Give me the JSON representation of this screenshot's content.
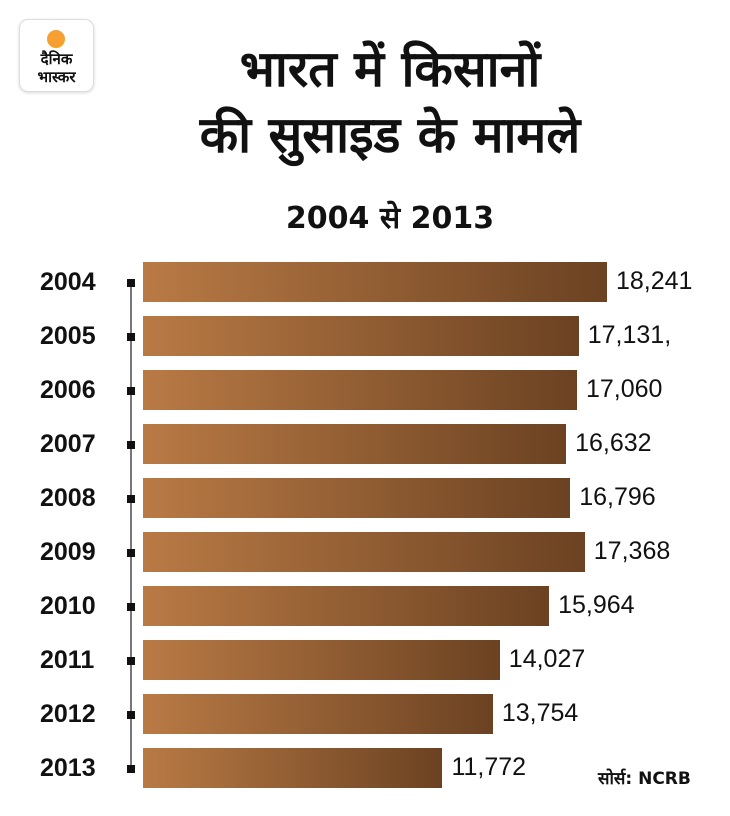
{
  "logo": {
    "line1": "दैनिक",
    "line2": "भास्कर"
  },
  "chart_data": {
    "type": "bar",
    "orientation": "horizontal",
    "title_lines": [
      "भारत में किसानों",
      "की सुसाइड के मामले"
    ],
    "subtitle": "2004 से 2013",
    "categories": [
      "2004",
      "2005",
      "2006",
      "2007",
      "2008",
      "2009",
      "2010",
      "2011",
      "2012",
      "2013"
    ],
    "values": [
      18241,
      17131,
      17060,
      16632,
      16796,
      17368,
      15964,
      14027,
      13754,
      11772
    ],
    "data_labels": [
      "18,241",
      "17,131,",
      "17,060",
      "16,632",
      "16,796",
      "17,368",
      "15,964",
      "14,027",
      "13,754",
      "11,772"
    ],
    "bar_color_start": "#b97a45",
    "bar_color_end": "#6b4222",
    "grid": false,
    "xlim": [
      0,
      18241
    ]
  },
  "source": "सोर्स: NCRB"
}
